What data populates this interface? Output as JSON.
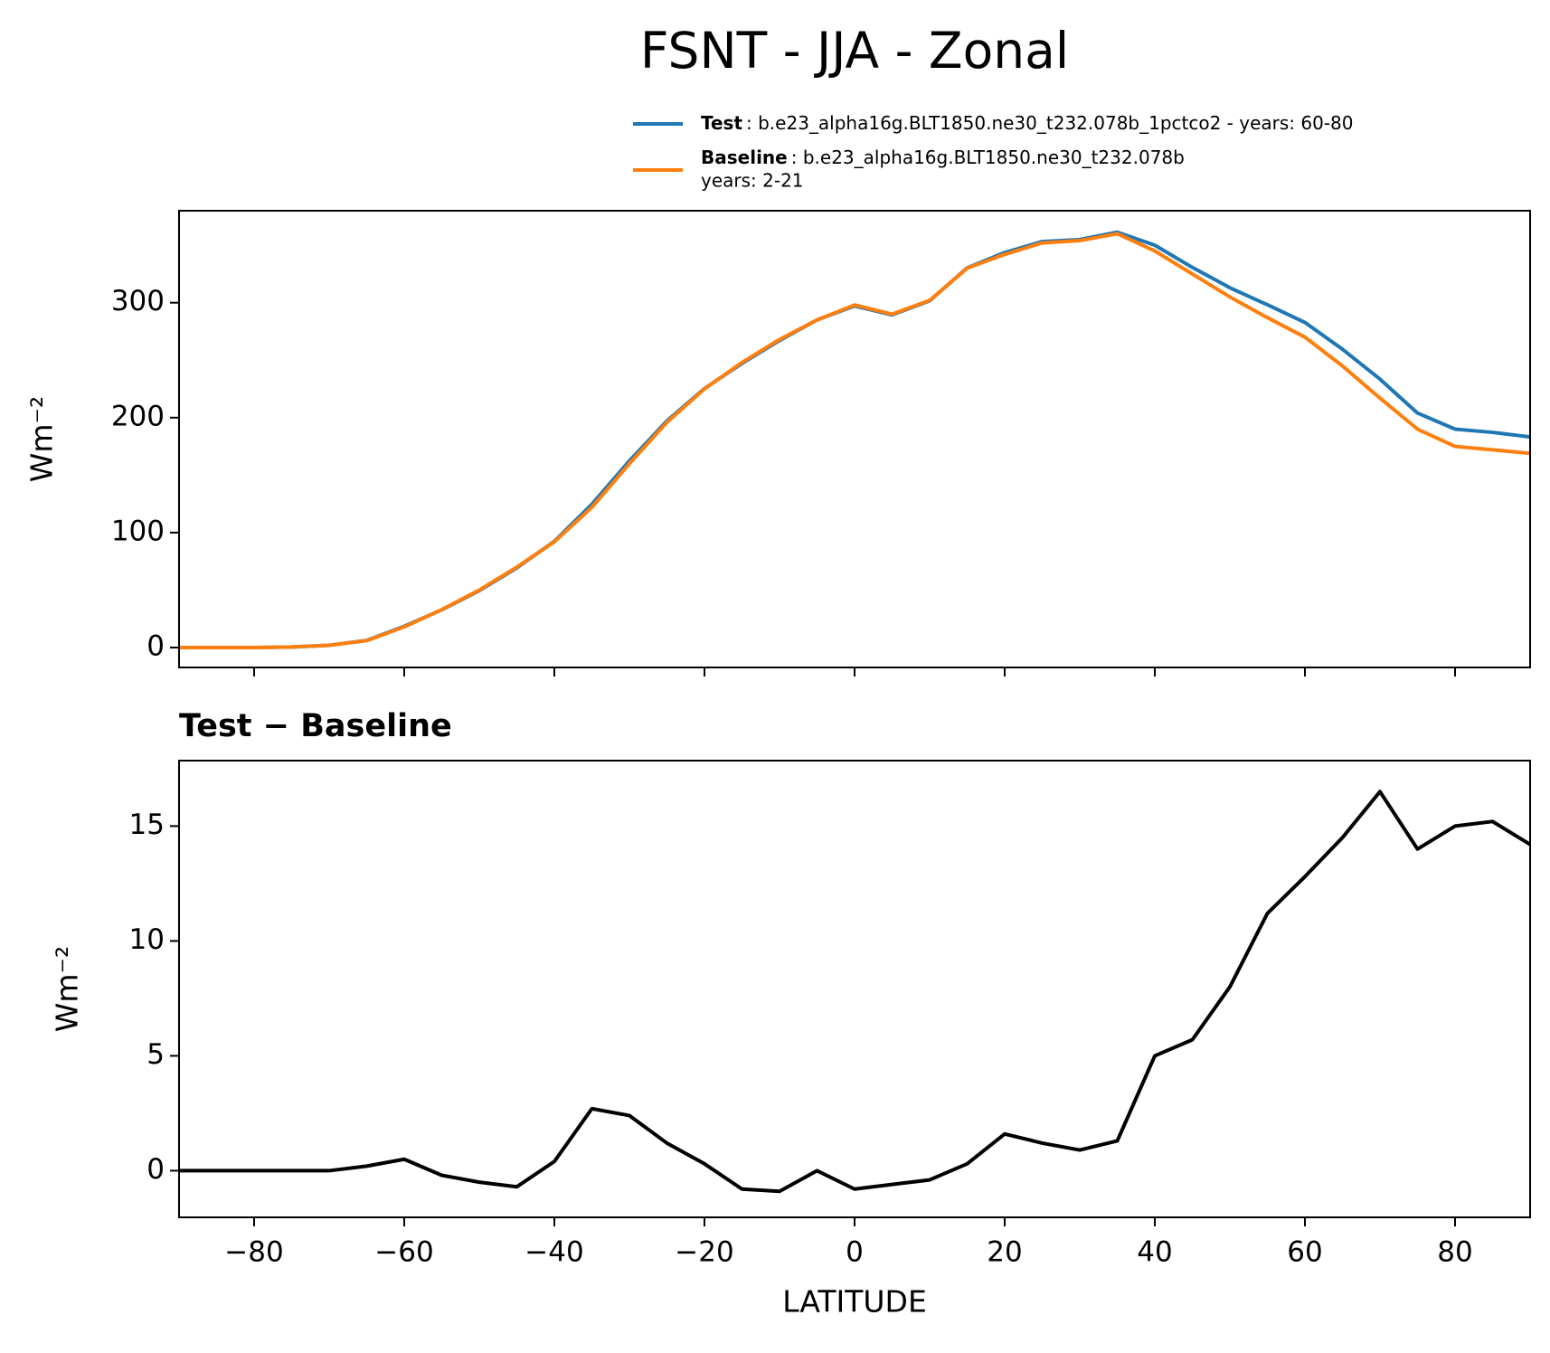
{
  "title": "FSNT - JJA - Zonal",
  "chart_data": [
    {
      "type": "line",
      "ylabel": "Wm⁻²",
      "x": [
        -90,
        -85,
        -80,
        -75,
        -70,
        -65,
        -60,
        -55,
        -50,
        -45,
        -40,
        -35,
        -30,
        -25,
        -20,
        -15,
        -10,
        -5,
        0,
        5,
        10,
        15,
        20,
        25,
        30,
        35,
        40,
        45,
        50,
        55,
        60,
        65,
        70,
        75,
        80,
        85,
        90
      ],
      "series": [
        {
          "name": "Test",
          "description": [
            ": b.e23_alpha16g.BLT1850.ne30_t232.078b_1pctco2 - years: 60-80"
          ],
          "color": "#1f77b4",
          "values": [
            0,
            0,
            0,
            0.5,
            2,
            6.2,
            18.5,
            32.8,
            49.5,
            69.3,
            92.4,
            124.7,
            162.4,
            197.2,
            225.3,
            247.2,
            267.1,
            285,
            297.2,
            289.4,
            301.6,
            330.3,
            343.6,
            353.2,
            354.9,
            361.3,
            350,
            330.7,
            313,
            298.2,
            282.8,
            259.5,
            233.5,
            204,
            190,
            187.2,
            183.2
          ]
        },
        {
          "name": "Baseline",
          "description": [
            ": b.e23_alpha16g.BLT1850.ne30_t232.078b",
            "years: 2-21"
          ],
          "color": "#ff7f0e",
          "values": [
            0,
            0,
            0,
            0.5,
            2,
            6,
            18,
            33,
            50,
            70,
            92,
            122,
            160,
            196,
            225,
            248,
            268,
            285,
            298,
            290,
            302,
            330,
            342,
            352,
            354,
            360,
            345,
            325,
            305,
            287,
            270,
            245,
            217,
            190,
            175,
            172,
            169
          ]
        }
      ],
      "xlim": [
        -90,
        90
      ],
      "ylim": [
        -17.3,
        380
      ],
      "xticks": [
        -80,
        -60,
        -40,
        -20,
        0,
        20,
        40,
        60,
        80
      ],
      "xtick_labels": false,
      "yticks": [
        0,
        100,
        200,
        300
      ]
    },
    {
      "type": "line",
      "title": "Test − Baseline",
      "xlabel": "LATITUDE",
      "ylabel": "Wm⁻²",
      "x": [
        -90,
        -85,
        -80,
        -75,
        -70,
        -65,
        -60,
        -55,
        -50,
        -45,
        -40,
        -35,
        -30,
        -25,
        -20,
        -15,
        -10,
        -5,
        0,
        5,
        10,
        15,
        20,
        25,
        30,
        35,
        40,
        45,
        50,
        55,
        60,
        65,
        70,
        75,
        80,
        85,
        90
      ],
      "values": [
        0,
        0,
        0,
        0,
        0,
        0.2,
        0.5,
        -0.2,
        -0.5,
        -0.7,
        0.4,
        2.7,
        2.4,
        1.2,
        0.3,
        -0.8,
        -0.9,
        0,
        -0.8,
        -0.6,
        -0.4,
        0.3,
        1.6,
        1.2,
        0.9,
        1.3,
        5.0,
        5.7,
        8.0,
        11.2,
        12.8,
        14.5,
        16.5,
        14.0,
        15.0,
        15.2,
        14.2
      ],
      "color": "#000000",
      "xlim": [
        -90,
        90
      ],
      "ylim": [
        -2.03,
        17.85
      ],
      "xticks": [
        {
          "value": -80,
          "label": "−80"
        },
        {
          "value": -60,
          "label": "−60"
        },
        {
          "value": -40,
          "label": "−40"
        },
        {
          "value": -20,
          "label": "−20"
        },
        0,
        20,
        40,
        60,
        80
      ],
      "yticks": [
        0,
        5,
        10,
        15
      ]
    }
  ]
}
